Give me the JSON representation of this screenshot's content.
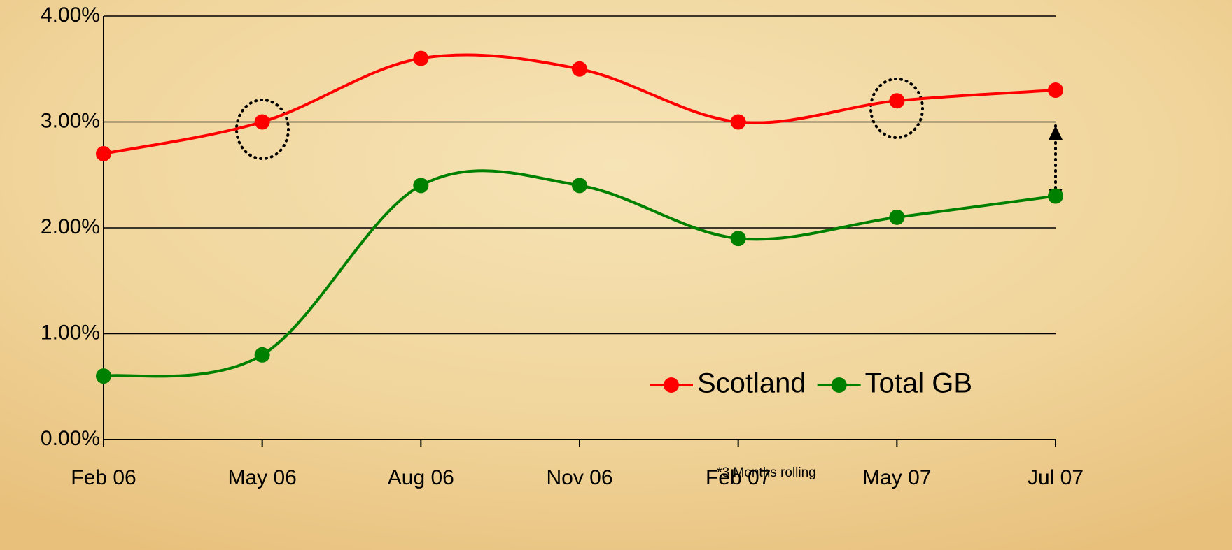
{
  "chart_data": {
    "type": "line",
    "categories": [
      "Feb 06",
      "May 06",
      "Aug 06",
      "Nov 06",
      "Feb 07",
      "May 07",
      "Jul 07"
    ],
    "series": [
      {
        "name": "Scotland",
        "color": "#ff0000",
        "values": [
          2.7,
          3.0,
          3.6,
          3.5,
          3.0,
          3.2,
          3.3
        ]
      },
      {
        "name": "Total GB",
        "color": "#008000",
        "values": [
          0.6,
          0.8,
          2.4,
          2.4,
          1.9,
          2.1,
          2.3
        ]
      }
    ],
    "ylim": [
      0,
      4
    ],
    "yticks": [
      {
        "value": 0,
        "label": "0.00%"
      },
      {
        "value": 1,
        "label": "1.00%"
      },
      {
        "value": 2,
        "label": "2.00%"
      },
      {
        "value": 3,
        "label": "3.00%"
      },
      {
        "value": 4,
        "label": "4.00%"
      }
    ],
    "grid": true,
    "legend": "lower right",
    "annotation": "*3 Months rolling"
  }
}
